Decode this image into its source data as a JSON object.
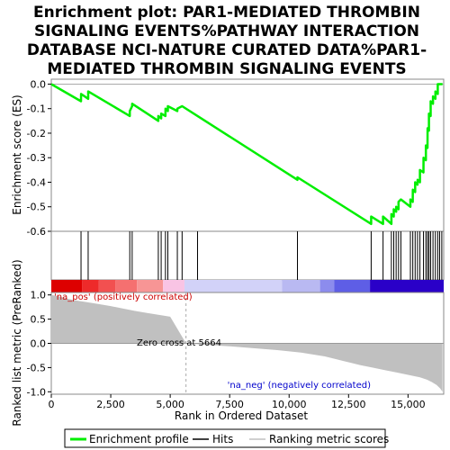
{
  "chart_data": {
    "type": "line",
    "title_lines": [
      "Enrichment plot: PAR1-MEDIATED THROMBIN",
      "SIGNALING EVENTS%PATHWAY INTERACTION",
      "DATABASE NCI-NATURE CURATED DATA%PAR1-",
      "MEDIATED THROMBIN SIGNALING EVENTS"
    ],
    "xlabel": "Rank in Ordered Dataset",
    "xlim": [
      0,
      16500
    ],
    "x_ticks": [
      0,
      2500,
      5000,
      7500,
      10000,
      12500,
      15000
    ],
    "x_tick_labels": [
      "0",
      "2,500",
      "5,000",
      "7,500",
      "10,000",
      "12,500",
      "15,000"
    ],
    "es_panel": {
      "ylabel": "Enrichment score (ES)",
      "ylim": [
        -0.6,
        0.02
      ],
      "y_ticks": [
        0.0,
        -0.1,
        -0.2,
        -0.3,
        -0.4,
        -0.5,
        -0.6
      ],
      "y_tick_labels": [
        "0.0",
        "-0.1",
        "-0.2",
        "-0.3",
        "-0.4",
        "-0.5",
        "-0.6"
      ],
      "series": [
        {
          "name": "Enrichment profile",
          "color": "#00ee00",
          "x": [
            0,
            1250,
            1251,
            1550,
            1551,
            3300,
            3301,
            3400,
            3401,
            4500,
            4501,
            4620,
            4621,
            4800,
            4801,
            4900,
            4901,
            5300,
            5301,
            5500,
            5501,
            10350,
            10351,
            13450,
            13451,
            13950,
            13951,
            14300,
            14301,
            14400,
            14401,
            14500,
            14501,
            14600,
            14601,
            14700,
            14701,
            15100,
            15101,
            15200,
            15201,
            15300,
            15301,
            15400,
            15401,
            15500,
            15501,
            15650,
            15651,
            15750,
            15751,
            15820,
            15821,
            15880,
            15881,
            15950,
            15951,
            16050,
            16051,
            16150,
            16151,
            16250,
            16251,
            16330,
            16331,
            16450
          ],
          "y": [
            0.0,
            -0.07,
            -0.04,
            -0.06,
            -0.03,
            -0.13,
            -0.11,
            -0.09,
            -0.08,
            -0.15,
            -0.13,
            -0.14,
            -0.12,
            -0.13,
            -0.1,
            -0.11,
            -0.09,
            -0.11,
            -0.1,
            -0.09,
            -0.09,
            -0.39,
            -0.38,
            -0.57,
            -0.54,
            -0.57,
            -0.54,
            -0.57,
            -0.53,
            -0.54,
            -0.51,
            -0.52,
            -0.5,
            -0.51,
            -0.48,
            -0.47,
            -0.47,
            -0.5,
            -0.47,
            -0.48,
            -0.43,
            -0.44,
            -0.4,
            -0.41,
            -0.39,
            -0.4,
            -0.35,
            -0.36,
            -0.3,
            -0.31,
            -0.25,
            -0.26,
            -0.18,
            -0.19,
            -0.12,
            -0.13,
            -0.07,
            -0.08,
            -0.05,
            -0.06,
            -0.03,
            -0.04,
            0.0,
            0.0,
            0.0,
            0.0
          ]
        }
      ]
    },
    "hits": {
      "name": "Hits",
      "color": "#000000",
      "x": [
        1250,
        1550,
        3300,
        3400,
        4500,
        4620,
        4800,
        4900,
        5300,
        5500,
        6150,
        10350,
        13450,
        13950,
        14300,
        14400,
        14500,
        14600,
        14700,
        15100,
        15200,
        15300,
        15400,
        15500,
        15650,
        15750,
        15820,
        15880,
        15950,
        16050,
        16150,
        16250,
        16330,
        16420
      ]
    },
    "color_bar": {
      "segments": [
        {
          "from": 0,
          "to": 1300,
          "color": "#dd0000"
        },
        {
          "from": 1300,
          "to": 2000,
          "color": "#ee2a2a"
        },
        {
          "from": 2000,
          "to": 2700,
          "color": "#f25050"
        },
        {
          "from": 2700,
          "to": 3600,
          "color": "#f57070"
        },
        {
          "from": 3600,
          "to": 4700,
          "color": "#f79595"
        },
        {
          "from": 4700,
          "to": 5600,
          "color": "#f9c4e4"
        },
        {
          "from": 5600,
          "to": 9700,
          "color": "#d2d2f8"
        },
        {
          "from": 9700,
          "to": 11300,
          "color": "#b9b9f2"
        },
        {
          "from": 11300,
          "to": 11900,
          "color": "#8c8ced"
        },
        {
          "from": 11900,
          "to": 13400,
          "color": "#5e5ee6"
        },
        {
          "from": 13400,
          "to": 16500,
          "color": "#2a00c8"
        }
      ]
    },
    "metric_panel": {
      "ylabel": "Ranked list metric (PreRanked)",
      "ylim": [
        -1.05,
        1.05
      ],
      "y_ticks": [
        1.0,
        0.5,
        0.0,
        -0.5,
        -1.0
      ],
      "y_tick_labels": [
        "1.0",
        "0.5",
        "0.0",
        "-0.5",
        "-1.0"
      ],
      "name": "Ranking metric scores",
      "fill_color": "#c0c0c0",
      "x": [
        0,
        300,
        700,
        1100,
        1500,
        2000,
        2500,
        3000,
        3500,
        4000,
        4500,
        5000,
        5664,
        6500,
        7500,
        8500,
        9500,
        10500,
        11000,
        11500,
        12000,
        12500,
        13000,
        13500,
        14000,
        14500,
        15000,
        15500,
        15800,
        16000,
        16200,
        16350,
        16450
      ],
      "values": [
        1.0,
        0.97,
        0.92,
        0.88,
        0.85,
        0.81,
        0.77,
        0.72,
        0.67,
        0.63,
        0.59,
        0.55,
        0.0,
        -0.03,
        -0.06,
        -0.1,
        -0.14,
        -0.19,
        -0.23,
        -0.27,
        -0.33,
        -0.39,
        -0.45,
        -0.5,
        -0.55,
        -0.6,
        -0.65,
        -0.7,
        -0.75,
        -0.8,
        -0.86,
        -0.93,
        -1.0
      ],
      "zero_cross_x": 5664,
      "zero_cross_label": "Zero cross at 5664",
      "pos_label": "'na_pos' (positively correlated)",
      "neg_label": "'na_neg' (negatively correlated)",
      "pos_label_color": "#cc0000",
      "neg_label_color": "#0000cc"
    },
    "legend": {
      "placement": "bottom",
      "entries": [
        {
          "label": "Enrichment profile",
          "color": "#00ee00",
          "style": "thick-line"
        },
        {
          "label": "Hits",
          "color": "#000000",
          "style": "thin-line"
        },
        {
          "label": "Ranking metric scores",
          "color": "#c0c0c0",
          "style": "thin-line"
        }
      ]
    }
  }
}
